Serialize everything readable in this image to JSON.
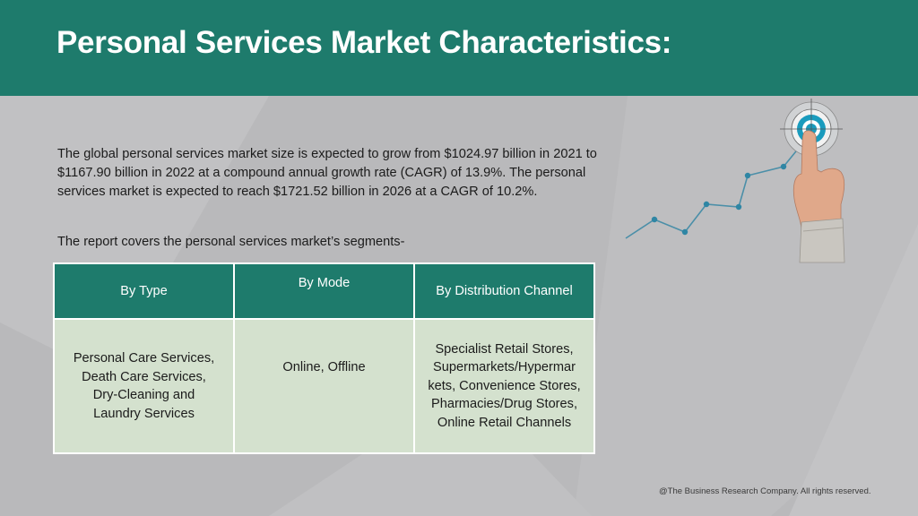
{
  "slide": {
    "title": "Personal Services Market Characteristics:",
    "intro_text": "The global personal services market size is expected to grow from $1024.97 billion in 2021 to $1167.90 billion in 2022 at a compound annual growth rate (CAGR) of 13.9%. The personal services market is expected to reach $1721.52 billion in 2026 at a CAGR of 10.2%.",
    "segments_note": "The report covers the personal services market’s segments-",
    "footer": "@The Business Research Company. All rights reserved."
  },
  "table": {
    "headers": [
      "By Type",
      "By Mode",
      "By Distribution Channel"
    ],
    "cells": [
      "Personal Care Services, Death Care Services, Dry-Cleaning and Laundry Services",
      "Online, Offline",
      "Specialist Retail Stores, Supermarkets/Hypermar kets, Convenience Stores, Pharmacies/Drug Stores, Online Retail Channels"
    ]
  },
  "graphic": {
    "icon": "growth-chart-target-icon",
    "line_color": "#4b8fa8",
    "target_color": "#1a9bbd"
  },
  "colors": {
    "header_bg": "#1e7b6c",
    "page_bg": "#b9b9bb",
    "cell_bg": "#d4e1ce"
  }
}
